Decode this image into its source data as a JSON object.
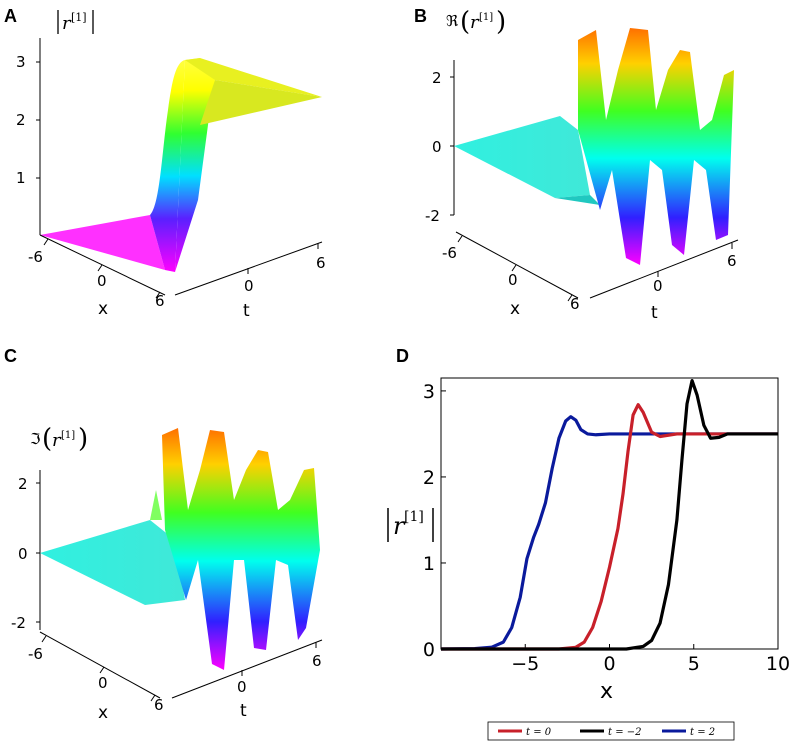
{
  "chart_data": [
    {
      "panel": "A",
      "type": "surface3d",
      "quantity": "|r^[1]|",
      "z_label": "|r[1]|",
      "z_ticks": [
        "1",
        "2",
        "3"
      ],
      "x_label": "x",
      "x_ticks": [
        "-6",
        "0",
        "6"
      ],
      "t_label": "t",
      "t_ticks": [
        "0",
        "6"
      ],
      "x_range": [
        -6,
        6
      ],
      "t_range": [
        -6,
        6
      ],
      "z_range": [
        0,
        3.2
      ],
      "profile": "kink from 0 to about 2.5 with overshoot near 3"
    },
    {
      "panel": "B",
      "type": "surface3d",
      "quantity": "Re(r^[1])",
      "z_label": "ℜ(r[1])",
      "z_ticks": [
        "-2",
        "0",
        "2"
      ],
      "x_label": "x",
      "x_ticks": [
        "-6",
        "0",
        "6"
      ],
      "t_label": "t",
      "t_ticks": [
        "0",
        "6"
      ],
      "x_range": [
        -6,
        6
      ],
      "t_range": [
        -6,
        6
      ],
      "z_range": [
        -2.6,
        2.6
      ],
      "profile": "flat near 0 then oscillating with amplitude about 2.5"
    },
    {
      "panel": "C",
      "type": "surface3d",
      "quantity": "Im(r^[1])",
      "z_label": "ℑ(r[1])",
      "z_ticks": [
        "-2",
        "0",
        "2"
      ],
      "x_label": "x",
      "x_ticks": [
        "-6",
        "0",
        "6"
      ],
      "t_label": "t",
      "t_ticks": [
        "0",
        "6"
      ],
      "x_range": [
        -6,
        6
      ],
      "t_range": [
        -6,
        6
      ],
      "z_range": [
        -2.6,
        2.6
      ],
      "profile": "flat near 0 then oscillating with amplitude about 2.5"
    },
    {
      "panel": "D",
      "type": "line",
      "xlabel": "x",
      "ylabel": "|r[1]|",
      "xlim": [
        -10,
        10
      ],
      "ylim": [
        0,
        3.15
      ],
      "x_ticks": [
        -5,
        0,
        5,
        10
      ],
      "y_ticks": [
        0,
        1,
        2,
        3
      ],
      "x_tick_labels": [
        "−5",
        "0",
        "5",
        "10"
      ],
      "y_tick_labels": [
        "0",
        "1",
        "2",
        "3"
      ],
      "series": [
        {
          "name": "t=2",
          "legend_t": "t = 2",
          "color": "#0a1a9c",
          "x": [
            -10,
            -8,
            -7,
            -6.3,
            -5.8,
            -5.3,
            -4.9,
            -4.5,
            -4.2,
            -3.8,
            -3.4,
            -3,
            -2.6,
            -2.3,
            -2,
            -1.7,
            -1.3,
            -0.8,
            0,
            2,
            5,
            8,
            10
          ],
          "y": [
            0,
            0.005,
            0.02,
            0.08,
            0.25,
            0.6,
            1.05,
            1.3,
            1.45,
            1.7,
            2.1,
            2.45,
            2.65,
            2.7,
            2.66,
            2.55,
            2.5,
            2.49,
            2.5,
            2.5,
            2.5,
            2.5,
            2.5
          ]
        },
        {
          "name": "t=0",
          "legend_t": "t = 0",
          "color": "#c8202a",
          "x": [
            -10,
            -3,
            -2,
            -1.5,
            -1,
            -0.5,
            0,
            0.5,
            0.8,
            1.1,
            1.4,
            1.7,
            2,
            2.5,
            3,
            4,
            6,
            10
          ],
          "y": [
            0,
            0,
            0.02,
            0.08,
            0.25,
            0.55,
            0.95,
            1.4,
            1.8,
            2.3,
            2.72,
            2.84,
            2.75,
            2.52,
            2.47,
            2.5,
            2.5,
            2.5
          ]
        },
        {
          "name": "t=-2",
          "legend_t": "t = −2",
          "color": "#000000",
          "x": [
            -10,
            1,
            2,
            2.5,
            3,
            3.5,
            4,
            4.3,
            4.6,
            4.9,
            5.2,
            5.6,
            6,
            6.5,
            7,
            8,
            10
          ],
          "y": [
            0,
            0,
            0.03,
            0.1,
            0.3,
            0.75,
            1.5,
            2.2,
            2.85,
            3.12,
            2.95,
            2.6,
            2.45,
            2.46,
            2.5,
            2.5,
            2.5
          ]
        }
      ]
    }
  ],
  "panels": [
    {
      "id": "A",
      "label": "A"
    },
    {
      "id": "B",
      "label": "B"
    },
    {
      "id": "C",
      "label": "C"
    },
    {
      "id": "D",
      "label": "D"
    }
  ],
  "colors": {
    "surface_palette": [
      "#ff00ff",
      "#0000ff",
      "#00ffff",
      "#00ff00",
      "#ffff00",
      "#ff8000"
    ]
  }
}
